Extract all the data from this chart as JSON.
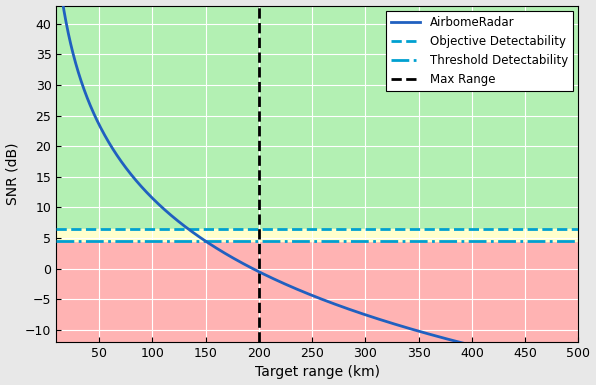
{
  "title": "",
  "xlabel": "Target range (km)",
  "ylabel": "SNR (dB)",
  "xlim": [
    10,
    500
  ],
  "ylim": [
    -12,
    43
  ],
  "xticks": [
    50,
    100,
    150,
    200,
    250,
    300,
    350,
    400,
    450,
    500
  ],
  "yticks": [
    -10,
    -5,
    0,
    5,
    10,
    15,
    20,
    25,
    30,
    35,
    40
  ],
  "objective_detectability": 6.5,
  "threshold_detectability": 4.5,
  "max_range": 200,
  "snr_curve_color": "#2060c0",
  "objective_color": "#00a0d0",
  "threshold_color": "#00a0d0",
  "max_range_color": "black",
  "bg_green": "#b3f0b3",
  "bg_red": "#ffb3b3",
  "bg_yellow": "#ffffcc",
  "legend_labels": [
    "AirbomeRadar",
    "Objective Detectability",
    "Threshold Detectability",
    "Max Range"
  ],
  "grid_color": "white",
  "snr_ref_range": 20,
  "snr_ref_value": 39.5,
  "fig_bg": "#e8e8e8"
}
